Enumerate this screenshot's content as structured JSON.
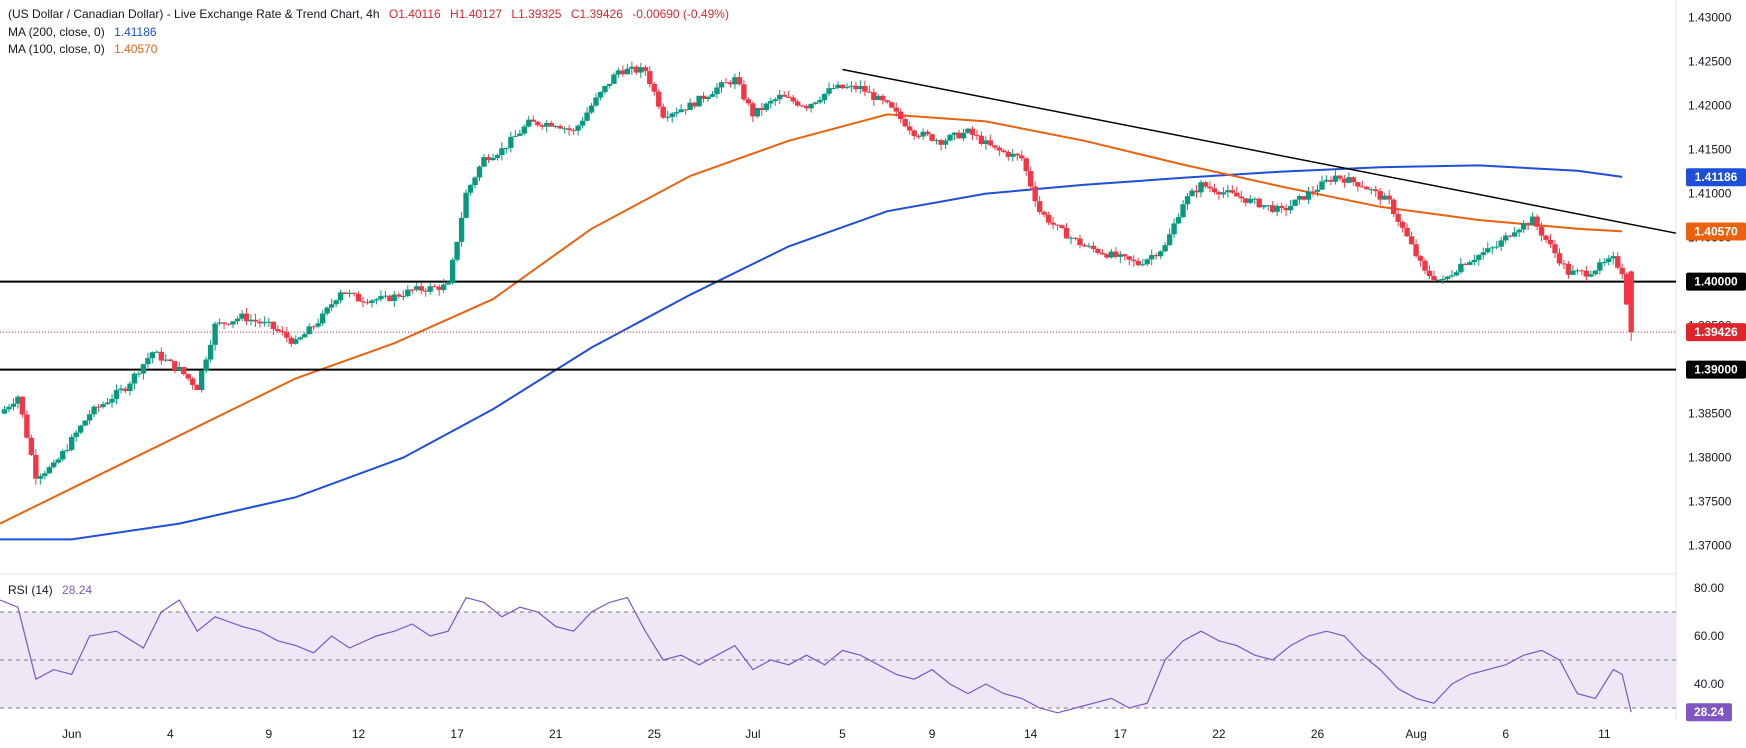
{
  "header": {
    "title": "(US Dollar / Canadian Dollar) - Live Exchange Rate & Trend Chart, 4h",
    "open": "O1.40116",
    "high": "H1.40127",
    "low": "L1.39325",
    "close": "C1.39426",
    "change": "-0.00690 (-0.49%)",
    "ma200_label": "MA (200, close, 0)",
    "ma200_value": "1.41186",
    "ma100_label": "MA (100, close, 0)",
    "ma100_value": "1.40570"
  },
  "rsi_panel": {
    "label": "RSI (14)",
    "value": "28.24"
  },
  "colors": {
    "up": "#089981",
    "down": "#f23645",
    "ma200": "#1e4fd8",
    "ma100": "#e8620f",
    "rsi": "#7e57c2",
    "rsi_band": "#ede7f6",
    "level": "#000000",
    "last_price": "#e0242b"
  },
  "chart_data": [
    {
      "type": "line",
      "subtype": "candlestick-4h",
      "title": "(US Dollar / Canadian Dollar) - Live Exchange Rate & Trend Chart, 4h",
      "ylim": [
        1.367,
        1.432
      ],
      "y_ticks": [
        "1.43000",
        "1.42500",
        "1.42000",
        "1.41500",
        "1.41000",
        "1.40500",
        "1.40000",
        "1.39500",
        "1.39000",
        "1.38500",
        "1.38000",
        "1.37500",
        "1.37000"
      ],
      "x_ticks": [
        "Jun",
        "4",
        "9",
        "12",
        "17",
        "21",
        "25",
        "Jul",
        "5",
        "9",
        "14",
        "17",
        "22",
        "26",
        "Aug",
        "6",
        "11"
      ],
      "x_ticks_index": [
        8,
        19,
        30,
        40,
        51,
        62,
        73,
        84,
        94,
        104,
        115,
        125,
        136,
        147,
        158,
        168,
        179
      ],
      "x_max_index": 187,
      "price_path": [
        [
          0,
          1.385
        ],
        [
          2,
          1.387
        ],
        [
          4,
          1.378
        ],
        [
          6,
          1.379
        ],
        [
          10,
          1.385
        ],
        [
          14,
          1.388
        ],
        [
          17,
          1.392
        ],
        [
          20,
          1.39
        ],
        [
          22,
          1.388
        ],
        [
          24,
          1.395
        ],
        [
          27,
          1.396
        ],
        [
          30,
          1.395
        ],
        [
          33,
          1.393
        ],
        [
          36,
          1.396
        ],
        [
          38,
          1.399
        ],
        [
          40,
          1.398
        ],
        [
          43,
          1.398
        ],
        [
          46,
          1.399
        ],
        [
          50,
          1.3995
        ],
        [
          52,
          1.41
        ],
        [
          54,
          1.414
        ],
        [
          56,
          1.415
        ],
        [
          59,
          1.418
        ],
        [
          62,
          1.418
        ],
        [
          64,
          1.417
        ],
        [
          66,
          1.42
        ],
        [
          69,
          1.424
        ],
        [
          72,
          1.424
        ],
        [
          74,
          1.419
        ],
        [
          77,
          1.42
        ],
        [
          80,
          1.422
        ],
        [
          82,
          1.423
        ],
        [
          84,
          1.419
        ],
        [
          87,
          1.421
        ],
        [
          90,
          1.42
        ],
        [
          93,
          1.422
        ],
        [
          96,
          1.422
        ],
        [
          99,
          1.42
        ],
        [
          102,
          1.417
        ],
        [
          105,
          1.416
        ],
        [
          108,
          1.417
        ],
        [
          111,
          1.415
        ],
        [
          114,
          1.414
        ],
        [
          116,
          1.408
        ],
        [
          118,
          1.406
        ],
        [
          121,
          1.404
        ],
        [
          124,
          1.403
        ],
        [
          127,
          1.402
        ],
        [
          130,
          1.404
        ],
        [
          132,
          1.409
        ],
        [
          134,
          1.411
        ],
        [
          137,
          1.41
        ],
        [
          140,
          1.409
        ],
        [
          143,
          1.408
        ],
        [
          146,
          1.41
        ],
        [
          149,
          1.412
        ],
        [
          152,
          1.411
        ],
        [
          155,
          1.409
        ],
        [
          157,
          1.405
        ],
        [
          159,
          1.401
        ],
        [
          161,
          1.4
        ],
        [
          163,
          1.402
        ],
        [
          165,
          1.403
        ],
        [
          167,
          1.404
        ],
        [
          169,
          1.406
        ],
        [
          171,
          1.407
        ],
        [
          173,
          1.404
        ],
        [
          175,
          1.401
        ],
        [
          177,
          1.401
        ],
        [
          179,
          1.402
        ],
        [
          180,
          1.4025
        ],
        [
          181,
          1.4012
        ],
        [
          182,
          1.3943
        ]
      ],
      "series": [
        {
          "name": "MA (200, close, 0)",
          "last": 1.41186,
          "points": [
            [
              0,
              1.3707
            ],
            [
              8,
              1.3707
            ],
            [
              20,
              1.3725
            ],
            [
              33,
              1.3755
            ],
            [
              45,
              1.38
            ],
            [
              55,
              1.3855
            ],
            [
              66,
              1.3925
            ],
            [
              77,
              1.3985
            ],
            [
              88,
              1.404
            ],
            [
              99,
              1.408
            ],
            [
              110,
              1.41
            ],
            [
              121,
              1.411
            ],
            [
              132,
              1.4118
            ],
            [
              143,
              1.4125
            ],
            [
              154,
              1.413
            ],
            [
              165,
              1.4132
            ],
            [
              176,
              1.4126
            ],
            [
              181,
              1.4119
            ]
          ]
        },
        {
          "name": "MA (100, close, 0)",
          "last": 1.4057,
          "points": [
            [
              0,
              1.3725
            ],
            [
              11,
              1.378
            ],
            [
              22,
              1.3835
            ],
            [
              33,
              1.389
            ],
            [
              44,
              1.393
            ],
            [
              55,
              1.398
            ],
            [
              66,
              1.406
            ],
            [
              77,
              1.412
            ],
            [
              88,
              1.416
            ],
            [
              99,
              1.419
            ],
            [
              110,
              1.4182
            ],
            [
              121,
              1.416
            ],
            [
              132,
              1.4133
            ],
            [
              143,
              1.4108
            ],
            [
              154,
              1.4085
            ],
            [
              165,
              1.407
            ],
            [
              176,
              1.406
            ],
            [
              181,
              1.4057
            ]
          ]
        }
      ],
      "trendline": [
        [
          94,
          1.4241
        ],
        [
          187,
          1.4055
        ]
      ],
      "levels": [
        1.4,
        1.39
      ],
      "last_price": 1.39426,
      "price_badges": [
        {
          "text": "1.41186",
          "value": 1.41186,
          "color": "#1e4fd8"
        },
        {
          "text": "1.40570",
          "value": 1.4057,
          "color": "#e8620f"
        },
        {
          "text": "1.40000",
          "value": 1.4,
          "color": "#000000"
        },
        {
          "text": "1.39426",
          "value": 1.39426,
          "color": "#e0242b"
        },
        {
          "text": "1.39000",
          "value": 1.39,
          "color": "#000000"
        }
      ]
    },
    {
      "type": "line",
      "title": "RSI (14)",
      "ylim": [
        25,
        85
      ],
      "y_ticks": [
        "80.00",
        "60.00",
        "40.00"
      ],
      "band": [
        30,
        70
      ],
      "midline": 50,
      "last": 28.24,
      "points": [
        [
          0,
          75
        ],
        [
          2,
          72
        ],
        [
          4,
          42
        ],
        [
          6,
          46
        ],
        [
          8,
          44
        ],
        [
          10,
          60
        ],
        [
          13,
          62
        ],
        [
          16,
          55
        ],
        [
          18,
          70
        ],
        [
          20,
          75
        ],
        [
          22,
          62
        ],
        [
          24,
          68
        ],
        [
          27,
          64
        ],
        [
          29,
          62
        ],
        [
          31,
          58
        ],
        [
          33,
          56
        ],
        [
          35,
          53
        ],
        [
          37,
          60
        ],
        [
          39,
          55
        ],
        [
          42,
          60
        ],
        [
          44,
          62
        ],
        [
          46,
          65
        ],
        [
          48,
          60
        ],
        [
          50,
          62
        ],
        [
          52,
          76
        ],
        [
          54,
          74
        ],
        [
          56,
          68
        ],
        [
          58,
          72
        ],
        [
          60,
          70
        ],
        [
          62,
          64
        ],
        [
          64,
          62
        ],
        [
          66,
          70
        ],
        [
          68,
          74
        ],
        [
          70,
          76
        ],
        [
          72,
          62
        ],
        [
          74,
          50
        ],
        [
          76,
          52
        ],
        [
          78,
          48
        ],
        [
          80,
          52
        ],
        [
          82,
          56
        ],
        [
          84,
          46
        ],
        [
          86,
          50
        ],
        [
          88,
          48
        ],
        [
          90,
          52
        ],
        [
          92,
          48
        ],
        [
          94,
          54
        ],
        [
          96,
          52
        ],
        [
          98,
          48
        ],
        [
          100,
          44
        ],
        [
          102,
          42
        ],
        [
          104,
          46
        ],
        [
          106,
          40
        ],
        [
          108,
          36
        ],
        [
          110,
          40
        ],
        [
          112,
          36
        ],
        [
          114,
          34
        ],
        [
          116,
          30
        ],
        [
          118,
          28
        ],
        [
          120,
          30
        ],
        [
          122,
          32
        ],
        [
          124,
          34
        ],
        [
          126,
          30
        ],
        [
          128,
          32
        ],
        [
          130,
          50
        ],
        [
          132,
          58
        ],
        [
          134,
          62
        ],
        [
          136,
          58
        ],
        [
          138,
          56
        ],
        [
          140,
          52
        ],
        [
          142,
          50
        ],
        [
          144,
          56
        ],
        [
          146,
          60
        ],
        [
          148,
          62
        ],
        [
          150,
          60
        ],
        [
          152,
          52
        ],
        [
          154,
          46
        ],
        [
          156,
          38
        ],
        [
          158,
          34
        ],
        [
          160,
          32
        ],
        [
          162,
          40
        ],
        [
          164,
          44
        ],
        [
          166,
          46
        ],
        [
          168,
          48
        ],
        [
          170,
          52
        ],
        [
          172,
          54
        ],
        [
          174,
          50
        ],
        [
          176,
          36
        ],
        [
          178,
          34
        ],
        [
          180,
          46
        ],
        [
          181,
          44
        ],
        [
          182,
          28.24
        ]
      ]
    }
  ]
}
